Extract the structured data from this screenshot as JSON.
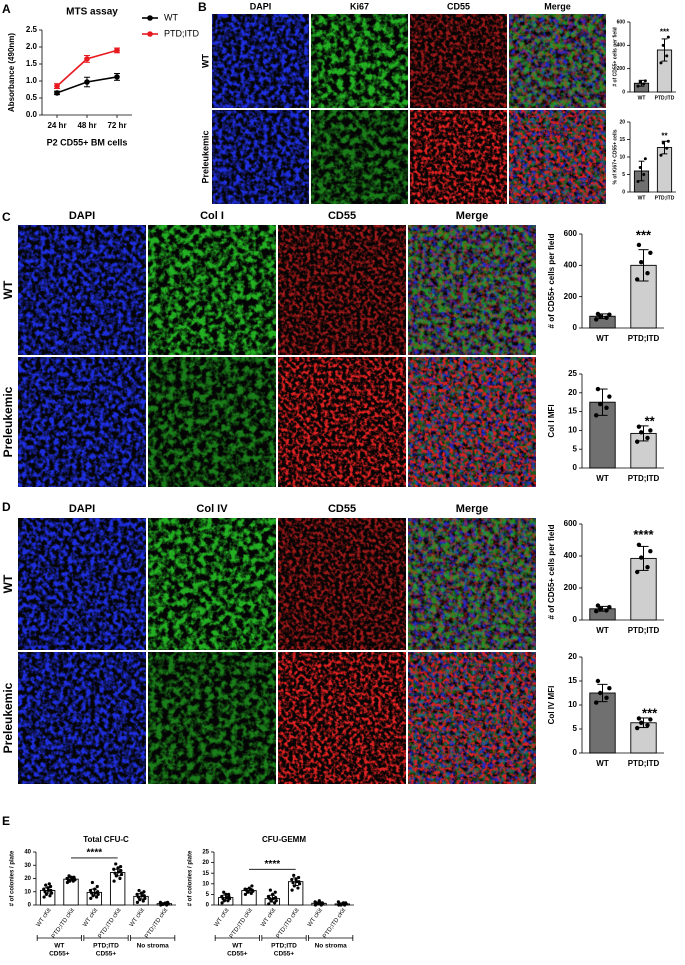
{
  "panel_labels": [
    "A",
    "B",
    "C",
    "D",
    "E"
  ],
  "image_panels": [
    {
      "label": "B",
      "columns": [
        {
          "name": "DAPI",
          "color": "#1f2fe0"
        },
        {
          "name": "Ki67",
          "color": "#22b022"
        },
        {
          "name": "CD55",
          "color": "#e02020"
        },
        {
          "name": "Merge",
          "color": "#000000"
        }
      ],
      "rows": [
        "WT",
        "Preleukemic"
      ]
    },
    {
      "label": "C",
      "columns": [
        {
          "name": "DAPI",
          "color": "#1f2fe0"
        },
        {
          "name": "Col I",
          "color": "#22b022"
        },
        {
          "name": "CD55",
          "color": "#e02020"
        },
        {
          "name": "Merge",
          "color": "#000000"
        }
      ],
      "rows": [
        "WT",
        "Preleukemic"
      ]
    },
    {
      "label": "D",
      "columns": [
        {
          "name": "DAPI",
          "color": "#1f2fe0"
        },
        {
          "name": "Col IV",
          "color": "#22b022"
        },
        {
          "name": "CD55",
          "color": "#e02020"
        },
        {
          "name": "Merge",
          "color": "#000000"
        }
      ],
      "rows": [
        "WT",
        "Preleukemic"
      ]
    }
  ],
  "chart_data": [
    {
      "type": "line",
      "title": "MTS assay",
      "categories": [
        "24 hr",
        "48 hr",
        "72 hr"
      ],
      "xlabel": "P2 CD55+ BM cells",
      "ylabel": "Absorbance (490nm)",
      "ylim": [
        0,
        2.5
      ],
      "yticks": [
        {
          "value": 0,
          "label": "0.0"
        },
        0.5,
        {
          "value": 1,
          "label": "1.0"
        },
        1.5,
        {
          "value": 2,
          "label": "2.0"
        },
        2.5
      ],
      "legend": "upper right",
      "series": [
        {
          "name": "WT",
          "color": "#000000",
          "values": [
            0.65,
            0.97,
            1.12
          ],
          "errors": [
            0.05,
            0.14,
            0.1
          ]
        },
        {
          "name": "PTD;ITD",
          "color": "#e8191f",
          "values": [
            0.85,
            1.65,
            1.9
          ],
          "errors": [
            0.07,
            0.1,
            0.07
          ]
        }
      ]
    },
    {
      "type": "bar",
      "ylabel": "# of CD55+ cells per field",
      "categories": [
        "WT",
        "PTD;ITD"
      ],
      "values": [
        75,
        360
      ],
      "errors": [
        25,
        95
      ],
      "points": [
        [
          50,
          70,
          85,
          95
        ],
        [
          250,
          310,
          400,
          470
        ]
      ],
      "colors": [
        "#707070",
        "#cfcfcf"
      ],
      "ylim": [
        0,
        600
      ],
      "yticks": [
        0,
        200,
        400,
        600
      ],
      "annotation": "***"
    },
    {
      "type": "bar",
      "ylabel": "% of Ki67+ CD55+ cells",
      "categories": [
        "WT",
        "PTD;ITD"
      ],
      "values": [
        6,
        12.7
      ],
      "errors": [
        2.8,
        1.8
      ],
      "points": [
        [
          3,
          5,
          7,
          9.5
        ],
        [
          10.5,
          12.5,
          14,
          14.5
        ]
      ],
      "colors": [
        "#707070",
        "#cfcfcf"
      ],
      "ylim": [
        0,
        20
      ],
      "yticks": [
        0,
        5,
        10,
        15,
        20
      ],
      "annotation": "**"
    },
    {
      "type": "bar",
      "ylabel": "# of CD55+ cells per field",
      "categories": [
        "WT",
        "PTD;ITD"
      ],
      "values": [
        75,
        400
      ],
      "errors": [
        15,
        100
      ],
      "points": [
        [
          55,
          65,
          75,
          85,
          90
        ],
        [
          310,
          350,
          420,
          480,
          530
        ]
      ],
      "colors": [
        "#707070",
        "#cfcfcf"
      ],
      "ylim": [
        0,
        600
      ],
      "yticks": [
        0,
        200,
        400,
        600
      ],
      "annotation": "***"
    },
    {
      "type": "bar",
      "ylabel": "Col I MFI",
      "categories": [
        "WT",
        "PTD;ITD"
      ],
      "values": [
        17.5,
        9.2
      ],
      "errors": [
        3.5,
        2
      ],
      "points": [
        [
          14,
          16,
          17,
          19,
          21
        ],
        [
          7,
          8,
          9.5,
          10,
          11
        ]
      ],
      "colors": [
        "#707070",
        "#cfcfcf"
      ],
      "ylim": [
        0,
        25
      ],
      "yticks": [
        0,
        5,
        10,
        15,
        20,
        25
      ],
      "annotation": "**"
    },
    {
      "type": "bar",
      "ylabel": "# of CD55+ cells per field",
      "categories": [
        "WT",
        "PTD;ITD"
      ],
      "values": [
        70,
        385
      ],
      "errors": [
        15,
        75
      ],
      "points": [
        [
          55,
          60,
          70,
          80,
          90
        ],
        [
          300,
          330,
          390,
          430,
          470
        ]
      ],
      "colors": [
        "#707070",
        "#cfcfcf"
      ],
      "ylim": [
        0,
        600
      ],
      "yticks": [
        0,
        200,
        400,
        600
      ],
      "annotation": "****"
    },
    {
      "type": "bar",
      "ylabel": "Col IV MFI",
      "categories": [
        "WT",
        "PTD;ITD"
      ],
      "values": [
        12.5,
        6.3
      ],
      "errors": [
        1.8,
        1
      ],
      "points": [
        [
          10.5,
          11.5,
          12.5,
          13.5,
          15
        ],
        [
          5.2,
          5.8,
          6.3,
          7,
          7.2
        ]
      ],
      "colors": [
        "#707070",
        "#cfcfcf"
      ],
      "ylim": [
        0,
        20
      ],
      "yticks": [
        0,
        5,
        10,
        15,
        20
      ],
      "annotation": "***"
    },
    {
      "type": "bar",
      "title": "Total CFU-C",
      "ylabel": "# of colonies / plate",
      "categories": [
        "WT cKit",
        "PTD;ITD cKit",
        "WT cKit",
        "PTD;ITD cKit",
        "WT cKit",
        "PTD;ITD cKit"
      ],
      "values": [
        11,
        19.5,
        9.5,
        24.5,
        6.5,
        1
      ],
      "errors": [
        2,
        1.2,
        2.5,
        2.5,
        2,
        0.7
      ],
      "points": [
        [
          6,
          7,
          8,
          9,
          10,
          11,
          11,
          12,
          13,
          14,
          15,
          16
        ],
        [
          17,
          18,
          18,
          19,
          19,
          20,
          20,
          20,
          21,
          21,
          22
        ],
        [
          5,
          6,
          7,
          8,
          9,
          9,
          10,
          11,
          12,
          14,
          17
        ],
        [
          18,
          20,
          22,
          23,
          24,
          25,
          26,
          27,
          28,
          29,
          31
        ],
        [
          2,
          3,
          4,
          5,
          6,
          7,
          7,
          8,
          9,
          10,
          11
        ],
        [
          0,
          0,
          0.5,
          1,
          1,
          1.5,
          2,
          2
        ]
      ],
      "groups": [
        [
          "WT",
          "CD55+"
        ],
        [
          "PTD;ITD",
          "CD55+"
        ],
        [
          "No stroma"
        ]
      ],
      "ylim": [
        0,
        40
      ],
      "yticks": [
        0,
        10,
        20,
        30,
        40
      ],
      "annotation": "****"
    },
    {
      "type": "bar",
      "title": "CFU-GEMM",
      "ylabel": "# of colonies / plate",
      "categories": [
        "WT cKit",
        "PTD;ITD cKit",
        "WT cKit",
        "PTD;ITD cKit",
        "WT cKit",
        "PTD;ITD cKit"
      ],
      "values": [
        3.5,
        6.8,
        3,
        11,
        0.8,
        0.5
      ],
      "errors": [
        1.2,
        1,
        1.6,
        1.8,
        0.6,
        0.5
      ],
      "points": [
        [
          1,
          2,
          2,
          3,
          3,
          3.5,
          4,
          4,
          5,
          5,
          6
        ],
        [
          5,
          5.5,
          6,
          6.5,
          7,
          7,
          7,
          7.5,
          8,
          9
        ],
        [
          0.5,
          1,
          2,
          2,
          3,
          3,
          3.5,
          4,
          5,
          6,
          7
        ],
        [
          7,
          8,
          9,
          10,
          10.5,
          11,
          11,
          12,
          12,
          13,
          14
        ],
        [
          0,
          0,
          0.5,
          0.5,
          1,
          1,
          1,
          1.5,
          2
        ],
        [
          0,
          0,
          0,
          0.5,
          0.5,
          1,
          1,
          1.5
        ]
      ],
      "groups": [
        [
          "WT",
          "CD55+"
        ],
        [
          "PTD;ITD",
          "CD55+"
        ],
        [
          "No stroma"
        ]
      ],
      "ylim": [
        0,
        25
      ],
      "yticks": [
        0,
        5,
        10,
        15,
        20,
        25
      ],
      "annotation": "****"
    }
  ]
}
